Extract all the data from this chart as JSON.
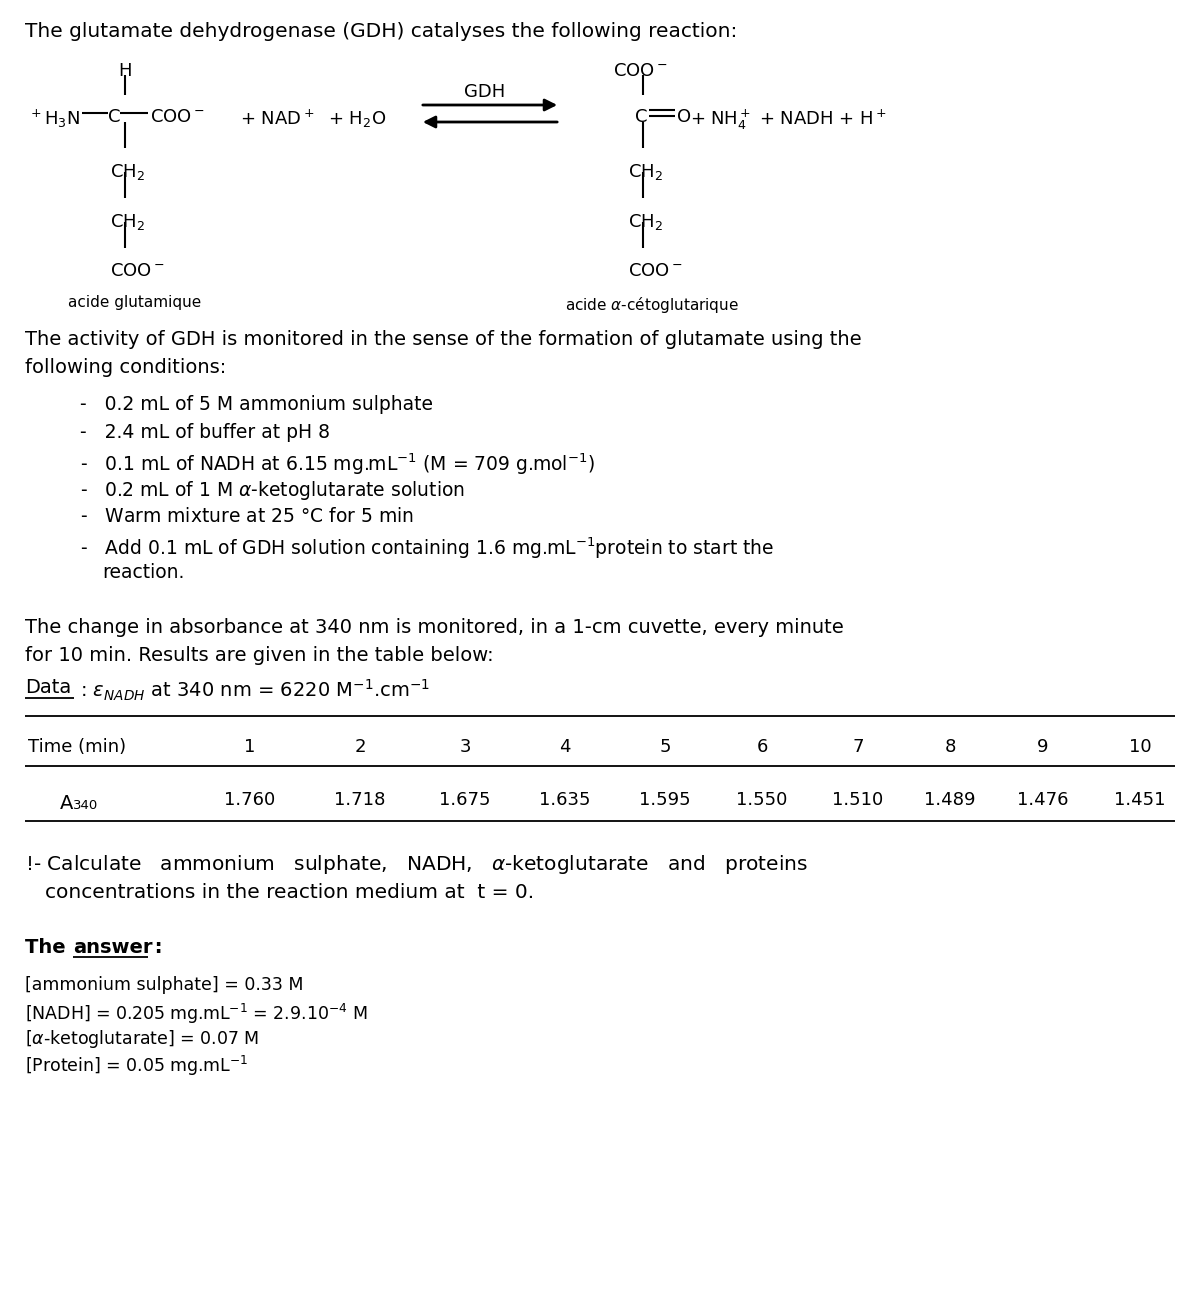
{
  "title_text": "The glutamate dehydrogenase (GDH) catalyses the following reaction:",
  "time_values": [
    1,
    2,
    3,
    4,
    5,
    6,
    7,
    8,
    9,
    10
  ],
  "a340_values": [
    1.76,
    1.718,
    1.675,
    1.635,
    1.595,
    1.55,
    1.51,
    1.489,
    1.476,
    1.451
  ],
  "bg_color": "#ffffff",
  "fig_width": 12.0,
  "fig_height": 13.15,
  "dpi": 100
}
